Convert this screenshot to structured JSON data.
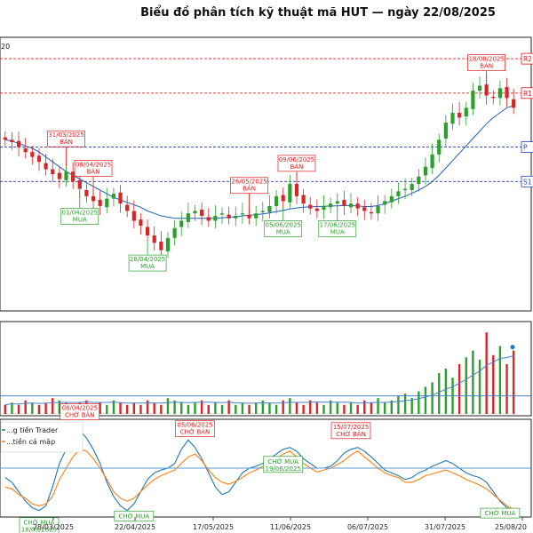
{
  "chart_data": {
    "type": "candlestick",
    "title": "Biểu đồ phân tích kỹ thuật mã HUT — ngày 22/08/2025",
    "price_panel": {
      "legend_fragment": "20",
      "ylim": [
        13.0,
        24.0
      ],
      "levels": [
        {
          "label": "R2",
          "value": 23.2,
          "color": "#e31a1c",
          "style": "dashed"
        },
        {
          "label": "R1",
          "value": 21.8,
          "color": "#e31a1c",
          "style": "dashed"
        },
        {
          "label": "P",
          "value": 19.6,
          "color": "#1f3fb4",
          "style": "dashed"
        },
        {
          "label": "S1",
          "value": 18.2,
          "color": "#1f3fb4",
          "style": "dashed"
        }
      ],
      "closes": [
        19.9,
        19.8,
        19.6,
        19.4,
        19.2,
        19.0,
        18.7,
        18.5,
        18.3,
        18.6,
        18.2,
        17.9,
        17.6,
        17.4,
        17.2,
        17.5,
        17.7,
        17.3,
        17.0,
        16.6,
        16.4,
        16.0,
        15.7,
        15.4,
        15.9,
        16.3,
        16.6,
        16.9,
        17.0,
        16.8,
        16.6,
        16.8,
        16.9,
        16.7,
        16.8,
        16.9,
        16.7,
        16.9,
        17.0,
        17.2,
        17.6,
        17.4,
        18.1,
        17.6,
        17.3,
        17.1,
        17.0,
        17.2,
        17.3,
        17.4,
        17.2,
        17.3,
        17.1,
        17.0,
        16.9,
        17.2,
        17.4,
        17.6,
        17.8,
        17.9,
        18.1,
        18.4,
        18.8,
        19.3,
        19.9,
        20.6,
        21.0,
        20.8,
        21.2,
        21.9,
        22.1,
        21.7,
        21.6,
        22.0,
        21.6,
        21.2
      ],
      "ma_values": [
        19.9,
        19.85,
        19.75,
        19.65,
        19.55,
        19.4,
        19.2,
        19.0,
        18.8,
        18.6,
        18.45,
        18.3,
        18.15,
        18.0,
        17.85,
        17.7,
        17.55,
        17.45,
        17.35,
        17.25,
        17.15,
        17.0,
        16.9,
        16.8,
        16.75,
        16.7,
        16.7,
        16.7,
        16.7,
        16.7,
        16.7,
        16.7,
        16.72,
        16.74,
        16.76,
        16.8,
        16.82,
        16.85,
        16.88,
        16.92,
        16.97,
        17.02,
        17.08,
        17.12,
        17.15,
        17.17,
        17.18,
        17.19,
        17.2,
        17.21,
        17.22,
        17.22,
        17.2,
        17.18,
        17.18,
        17.22,
        17.3,
        17.4,
        17.5,
        17.6,
        17.72,
        17.85,
        18.0,
        18.2,
        18.45,
        18.75,
        19.05,
        19.35,
        19.65,
        19.95,
        20.25,
        20.55,
        20.8,
        21.0,
        21.2,
        21.3
      ],
      "annotations": [
        {
          "kind": "BÁN",
          "date": "31/03/2025",
          "color": "#e31a1c"
        },
        {
          "kind": "BÁN",
          "date": "08/04/2025",
          "color": "#e31a1c"
        },
        {
          "kind": "MUA",
          "date": "01/04/2025",
          "color": "#2ca02c"
        },
        {
          "kind": "MUA",
          "date": "28/04/2025",
          "color": "#2ca02c"
        },
        {
          "kind": "BÁN",
          "date": "26/05/2025",
          "color": "#e31a1c"
        },
        {
          "kind": "BÁN",
          "date": "09/06/2025",
          "color": "#e31a1c"
        },
        {
          "kind": "MUA",
          "date": "05/06/2025",
          "color": "#2ca02c"
        },
        {
          "kind": "MUA",
          "date": "17/06/2025",
          "color": "#2ca02c"
        },
        {
          "kind": "BÁN",
          "date": "18/08/2025",
          "color": "#e31a1c"
        }
      ]
    },
    "volume_panel": {
      "ma_line_color": "#4a80c8",
      "threshold_color": "#4a80c8",
      "values": [
        4,
        5,
        4,
        6,
        5,
        4,
        5,
        7,
        6,
        5,
        4,
        5,
        6,
        4,
        5,
        4,
        6,
        5,
        4,
        5,
        4,
        6,
        5,
        4,
        7,
        6,
        5,
        4,
        5,
        6,
        4,
        5,
        4,
        6,
        4,
        5,
        4,
        5,
        6,
        5,
        4,
        6,
        7,
        5,
        4,
        6,
        5,
        4,
        6,
        5,
        4,
        5,
        4,
        6,
        5,
        7,
        5,
        6,
        8,
        9,
        7,
        10,
        12,
        14,
        18,
        20,
        16,
        22,
        25,
        28,
        24,
        36,
        26,
        30,
        22,
        28
      ],
      "ups": [
        0,
        1,
        0,
        0,
        1,
        0,
        0,
        0,
        1,
        1,
        0,
        0,
        0,
        1,
        0,
        1,
        1,
        0,
        0,
        0,
        0,
        0,
        0,
        0,
        1,
        1,
        1,
        1,
        1,
        0,
        0,
        1,
        1,
        0,
        1,
        1,
        0,
        1,
        1,
        1,
        1,
        0,
        1,
        0,
        0,
        0,
        0,
        1,
        1,
        1,
        0,
        1,
        0,
        0,
        0,
        1,
        1,
        1,
        1,
        1,
        1,
        1,
        1,
        1,
        1,
        1,
        1,
        0,
        1,
        1,
        1,
        0,
        0,
        1,
        0,
        0
      ]
    },
    "flow_panel": {
      "legend": [
        {
          "label": "...g tiền Trader",
          "color": "#1f77b4"
        },
        {
          "label": "...tiền cá mập",
          "color": "#ff7f0e"
        }
      ],
      "trader": [
        40,
        35,
        25,
        15,
        8,
        5,
        10,
        30,
        55,
        70,
        85,
        90,
        82,
        70,
        55,
        35,
        20,
        10,
        5,
        12,
        25,
        38,
        45,
        48,
        50,
        55,
        70,
        80,
        72,
        60,
        45,
        30,
        22,
        25,
        35,
        45,
        50,
        52,
        55,
        60,
        65,
        70,
        72,
        68,
        60,
        55,
        50,
        50,
        52,
        58,
        66,
        70,
        72,
        68,
        62,
        55,
        48,
        45,
        42,
        38,
        40,
        45,
        48,
        52,
        55,
        58,
        55,
        50,
        45,
        42,
        40,
        35,
        25,
        15,
        8,
        5
      ],
      "whale": [
        30,
        28,
        22,
        18,
        12,
        10,
        12,
        20,
        38,
        50,
        62,
        70,
        68,
        60,
        50,
        38,
        25,
        18,
        15,
        18,
        25,
        32,
        38,
        42,
        45,
        48,
        55,
        62,
        65,
        58,
        48,
        40,
        35,
        33,
        36,
        40,
        45,
        48,
        52,
        55,
        60,
        65,
        68,
        62,
        55,
        50,
        46,
        48,
        50,
        54,
        58,
        64,
        68,
        62,
        56,
        50,
        45,
        42,
        40,
        35,
        35,
        38,
        42,
        44,
        46,
        48,
        45,
        42,
        38,
        35,
        32,
        28,
        22,
        16,
        10,
        6
      ],
      "threshold": 50,
      "annotations": [
        {
          "kind": "CHỜ MUA",
          "date": "18/03/2025",
          "color": "#2ca02c"
        },
        {
          "kind": "CHỜ BÁN",
          "date": "08/04/2025",
          "color": "#e31a1c"
        },
        {
          "kind": "CHỜ MUA",
          "date": "",
          "color": "#2ca02c"
        },
        {
          "kind": "CHỜ BÁN",
          "date": "05/06/2025",
          "color": "#e31a1c"
        },
        {
          "kind": "CHỜ MUA",
          "date": "19/06/2025",
          "color": "#2ca02c"
        },
        {
          "kind": "CHỜ BÁN",
          "date": "15/07/2025",
          "color": "#e31a1c"
        },
        {
          "kind": "CHỜ MUA",
          "date": "",
          "color": "#2ca02c"
        }
      ]
    },
    "x_ticks": [
      "28/03/2025",
      "22/04/2025",
      "17/05/2025",
      "11/06/2025",
      "06/07/2025",
      "31/07/2025",
      "25/08/20"
    ]
  }
}
